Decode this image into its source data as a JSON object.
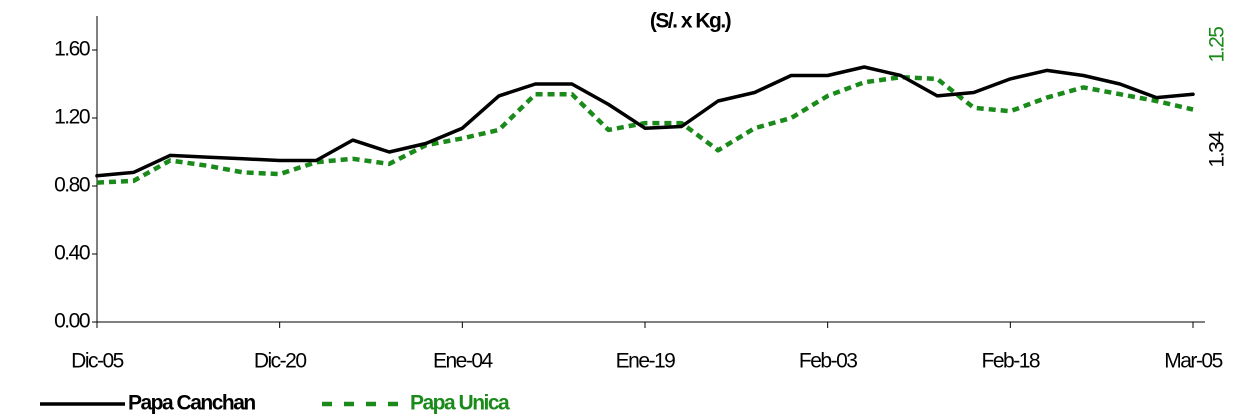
{
  "chart_data": {
    "type": "line",
    "title": "(S/. x Kg.)",
    "categories": [
      "Dic-05",
      null,
      null,
      null,
      null,
      "Dic-20",
      null,
      null,
      null,
      null,
      "Ene-04",
      null,
      null,
      null,
      null,
      "Ene-19",
      null,
      null,
      null,
      null,
      "Feb-03",
      null,
      null,
      null,
      null,
      "Feb-18",
      null,
      null,
      null,
      null,
      "Mar-05"
    ],
    "series": [
      {
        "name": "Papa Canchan",
        "color": "#000000",
        "dash": false,
        "values": [
          0.86,
          0.88,
          0.98,
          0.97,
          0.96,
          0.95,
          0.95,
          1.07,
          1.0,
          1.05,
          1.14,
          1.33,
          1.4,
          1.4,
          1.28,
          1.14,
          1.15,
          1.3,
          1.35,
          1.45,
          1.45,
          1.5,
          1.45,
          1.33,
          1.35,
          1.43,
          1.48,
          1.45,
          1.4,
          1.32,
          1.34
        ]
      },
      {
        "name": "Papa Unica",
        "color": "#1a8a1a",
        "dash": true,
        "values": [
          0.82,
          0.83,
          0.95,
          0.92,
          0.88,
          0.87,
          0.94,
          0.96,
          0.93,
          1.04,
          1.08,
          1.13,
          1.34,
          1.34,
          1.13,
          1.17,
          1.17,
          1.01,
          1.14,
          1.2,
          1.33,
          1.41,
          1.44,
          1.43,
          1.26,
          1.24,
          1.32,
          1.38,
          1.34,
          1.3,
          1.25
        ]
      }
    ],
    "ylim": [
      0,
      1.8
    ],
    "yticks": [
      {
        "value": 0,
        "label": "0.00"
      },
      {
        "value": 0.4,
        "label": "0.40"
      },
      {
        "value": 0.8,
        "label": "0.80"
      },
      {
        "value": 1.2,
        "label": "1.20"
      },
      {
        "value": 1.6,
        "label": "1.60"
      }
    ],
    "annotations": [
      {
        "text": "1.25",
        "color": "#1a8a1a"
      },
      {
        "text": "1.34",
        "color": "#000000"
      }
    ],
    "legend": "bottom-left"
  }
}
